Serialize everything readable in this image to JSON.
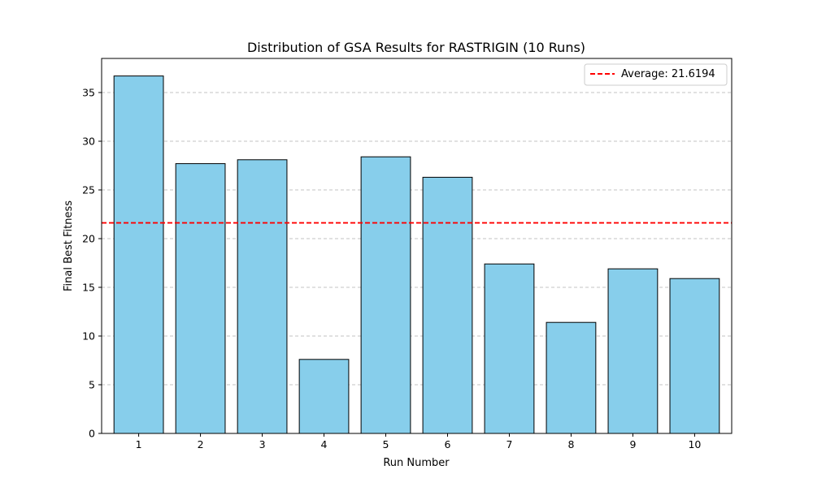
{
  "chart_data": {
    "type": "bar",
    "title": "Distribution of GSA Results for RASTRIGIN (10 Runs)",
    "xlabel": "Run Number",
    "ylabel": "Final Best Fitness",
    "categories": [
      "1",
      "2",
      "3",
      "4",
      "5",
      "6",
      "7",
      "8",
      "9",
      "10"
    ],
    "values": [
      36.7,
      27.7,
      28.1,
      7.6,
      28.4,
      26.3,
      17.4,
      11.4,
      16.9,
      15.9
    ],
    "ylim": [
      0,
      38.5
    ],
    "yticks": [
      0,
      5,
      10,
      15,
      20,
      25,
      30,
      35
    ],
    "grid": "y-dashed",
    "bar_color": "#87ceeb",
    "bar_edge_color": "#000000",
    "average_line": {
      "value": 21.6194,
      "label": "Average: 21.6194",
      "color": "#ff0000",
      "style": "dashed"
    },
    "legend_position": "top-right"
  }
}
